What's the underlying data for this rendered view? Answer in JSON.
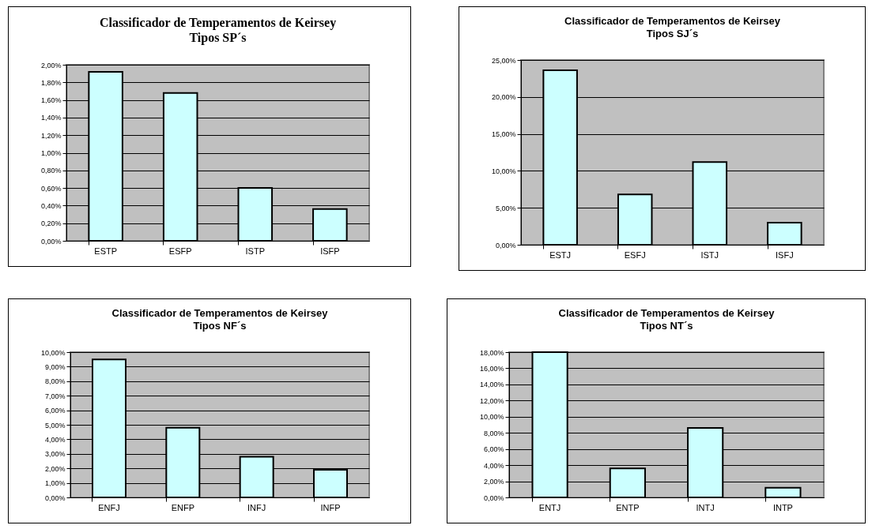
{
  "chart_data": [
    {
      "type": "bar",
      "title": "Classificador de Temperamentos de Keirsey",
      "subtitle": "Tipos SP´s",
      "categories": [
        "ESTP",
        "ESFP",
        "ISTP",
        "ISFP"
      ],
      "values": [
        1.92,
        1.68,
        0.6,
        0.36
      ],
      "color": "#ccffff",
      "ylim": [
        0,
        2
      ],
      "yticks": [
        {
          "value": 0,
          "label": "0,00%"
        },
        {
          "value": 0.2,
          "label": "0,20%"
        },
        {
          "value": 0.4,
          "label": "0,40%"
        },
        {
          "value": 0.6,
          "label": "0,60%"
        },
        {
          "value": 0.8,
          "label": "0,80%"
        },
        {
          "value": 1,
          "label": "1,00%"
        },
        {
          "value": 1.2,
          "label": "1,20%"
        },
        {
          "value": 1.4,
          "label": "1,40%"
        },
        {
          "value": 1.6,
          "label": "1,60%"
        },
        {
          "value": 1.8,
          "label": "1,80%"
        },
        {
          "value": 2,
          "label": "2,00%"
        }
      ],
      "grid": "y"
    },
    {
      "type": "bar",
      "title": "Classificador de Temperamentos de Keirsey",
      "subtitle": "Tipos SJ´s",
      "categories": [
        "ESTJ",
        "ESFJ",
        "ISTJ",
        "ISFJ"
      ],
      "values": [
        23.6,
        6.8,
        11.2,
        3.0
      ],
      "color": "#ccffff",
      "ylim": [
        0,
        25
      ],
      "yticks": [
        {
          "value": 0,
          "label": "0,00%"
        },
        {
          "value": 5,
          "label": "5,00%"
        },
        {
          "value": 10,
          "label": "10,00%"
        },
        {
          "value": 15,
          "label": "15,00%"
        },
        {
          "value": 20,
          "label": "20,00%"
        },
        {
          "value": 25,
          "label": "25,00%"
        }
      ],
      "grid": "y"
    },
    {
      "type": "bar",
      "title": "Classificador de Temperamentos de Keirsey",
      "subtitle": "Tipos NF´s",
      "categories": [
        "ENFJ",
        "ENFP",
        "INFJ",
        "INFP"
      ],
      "values": [
        9.5,
        4.8,
        2.8,
        1.9
      ],
      "color": "#ccffff",
      "ylim": [
        0,
        10
      ],
      "yticks": [
        {
          "value": 0,
          "label": "0,00%"
        },
        {
          "value": 1,
          "label": "1,00%"
        },
        {
          "value": 2,
          "label": "2,00%"
        },
        {
          "value": 3,
          "label": "3,00%"
        },
        {
          "value": 4,
          "label": "4,00%"
        },
        {
          "value": 5,
          "label": "5,00%"
        },
        {
          "value": 6,
          "label": "6,00%"
        },
        {
          "value": 7,
          "label": "7,00%"
        },
        {
          "value": 8,
          "label": "8,00%"
        },
        {
          "value": 9,
          "label": "9,00%"
        },
        {
          "value": 10,
          "label": "10,00%"
        }
      ],
      "grid": "y"
    },
    {
      "type": "bar",
      "title": "Classificador de Temperamentos de Keirsey",
      "subtitle": "Tipos NT´s",
      "categories": [
        "ENTJ",
        "ENTP",
        "INTJ",
        "INTP"
      ],
      "values": [
        18.0,
        3.6,
        8.6,
        1.2
      ],
      "color": "#ccffff",
      "ylim": [
        0,
        18
      ],
      "yticks": [
        {
          "value": 0,
          "label": "0,00%"
        },
        {
          "value": 2,
          "label": "2,00%"
        },
        {
          "value": 4,
          "label": "4,00%"
        },
        {
          "value": 6,
          "label": "6,00%"
        },
        {
          "value": 8,
          "label": "8,00%"
        },
        {
          "value": 10,
          "label": "10,00%"
        },
        {
          "value": 12,
          "label": "12,00%"
        },
        {
          "value": 14,
          "label": "14,00%"
        },
        {
          "value": 16,
          "label": "16,00%"
        },
        {
          "value": 18,
          "label": "18,00%"
        }
      ],
      "grid": "y"
    }
  ]
}
